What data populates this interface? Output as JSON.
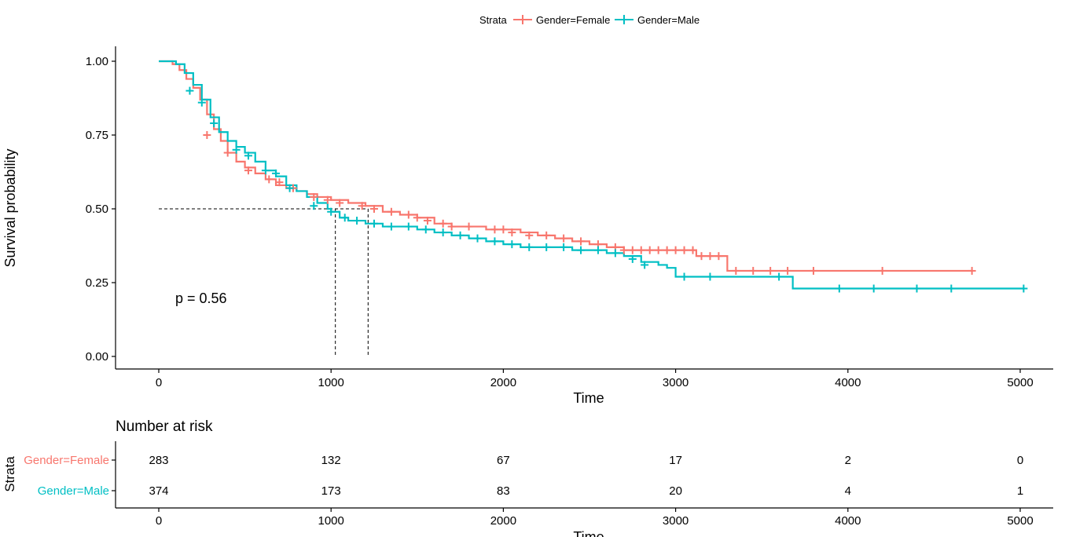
{
  "colors": {
    "female": "#F8766D",
    "male": "#00BFC4",
    "axis": "#000000"
  },
  "legend": {
    "title": "Strata",
    "items": [
      {
        "label": "Gender=Female",
        "color": "#F8766D"
      },
      {
        "label": "Gender=Male",
        "color": "#00BFC4"
      }
    ]
  },
  "annotation": {
    "pvalue": "p = 0.56"
  },
  "chart_data": [
    {
      "type": "line",
      "subtype": "kaplan-meier step",
      "xlabel": "Time",
      "ylabel": "Survival probability",
      "xlim": [
        0,
        5000
      ],
      "ylim": [
        0,
        1
      ],
      "x_ticks": [
        "0",
        "1000",
        "2000",
        "3000",
        "4000",
        "5000"
      ],
      "y_ticks": [
        "0.00",
        "0.25",
        "0.50",
        "0.75",
        "1.00"
      ],
      "x_tick_values": [
        0,
        1000,
        2000,
        3000,
        4000,
        5000
      ],
      "y_tick_values": [
        0,
        0.25,
        0.5,
        0.75,
        1
      ],
      "grid": false,
      "legend_position": "top",
      "median_lines": [
        {
          "series": "Gender=Male",
          "x": 1025,
          "y": 0.5
        },
        {
          "series": "Gender=Female",
          "x": 1215,
          "y": 0.5
        }
      ],
      "series": [
        {
          "name": "Gender=Female",
          "color": "#F8766D",
          "x": [
            0,
            40,
            80,
            120,
            160,
            200,
            240,
            280,
            320,
            360,
            400,
            450,
            500,
            560,
            620,
            680,
            740,
            800,
            860,
            920,
            1000,
            1100,
            1200,
            1300,
            1400,
            1500,
            1600,
            1700,
            1800,
            1900,
            2000,
            2100,
            2200,
            2300,
            2400,
            2500,
            2600,
            2700,
            2800,
            2900,
            3000,
            3100,
            3120,
            3300,
            4720
          ],
          "y": [
            1.0,
            1.0,
            0.99,
            0.97,
            0.94,
            0.91,
            0.87,
            0.82,
            0.77,
            0.73,
            0.69,
            0.66,
            0.64,
            0.62,
            0.6,
            0.58,
            0.57,
            0.56,
            0.55,
            0.54,
            0.53,
            0.52,
            0.51,
            0.49,
            0.48,
            0.47,
            0.45,
            0.44,
            0.44,
            0.43,
            0.43,
            0.42,
            0.41,
            0.4,
            0.39,
            0.38,
            0.37,
            0.36,
            0.36,
            0.36,
            0.36,
            0.36,
            0.34,
            0.29,
            0.29
          ],
          "censored_x": [
            280,
            400,
            520,
            640,
            700,
            780,
            900,
            980,
            1050,
            1180,
            1250,
            1350,
            1450,
            1500,
            1560,
            1650,
            1700,
            1800,
            1950,
            2000,
            2050,
            2150,
            2250,
            2350,
            2450,
            2550,
            2650,
            2700,
            2750,
            2800,
            2850,
            2900,
            2950,
            3000,
            3050,
            3100,
            3150,
            3200,
            3250,
            3350,
            3450,
            3550,
            3650,
            3800,
            4200,
            4720
          ],
          "censored_y": [
            0.75,
            0.69,
            0.63,
            0.6,
            0.59,
            0.57,
            0.54,
            0.53,
            0.52,
            0.51,
            0.5,
            0.49,
            0.48,
            0.47,
            0.46,
            0.45,
            0.44,
            0.44,
            0.43,
            0.43,
            0.42,
            0.41,
            0.41,
            0.4,
            0.39,
            0.38,
            0.37,
            0.36,
            0.36,
            0.36,
            0.36,
            0.36,
            0.36,
            0.36,
            0.36,
            0.36,
            0.34,
            0.34,
            0.34,
            0.29,
            0.29,
            0.29,
            0.29,
            0.29,
            0.29,
            0.29
          ]
        },
        {
          "name": "Gender=Male",
          "color": "#00BFC4",
          "x": [
            0,
            50,
            100,
            150,
            200,
            250,
            300,
            350,
            400,
            450,
            500,
            560,
            620,
            680,
            740,
            800,
            860,
            920,
            980,
            1000,
            1050,
            1100,
            1200,
            1300,
            1400,
            1500,
            1600,
            1700,
            1800,
            1900,
            2000,
            2100,
            2200,
            2300,
            2400,
            2500,
            2600,
            2700,
            2800,
            2900,
            2950,
            3000,
            3680,
            5020
          ],
          "y": [
            1.0,
            1.0,
            0.99,
            0.96,
            0.92,
            0.87,
            0.81,
            0.76,
            0.73,
            0.71,
            0.69,
            0.66,
            0.63,
            0.61,
            0.58,
            0.56,
            0.54,
            0.52,
            0.5,
            0.49,
            0.47,
            0.46,
            0.45,
            0.44,
            0.44,
            0.43,
            0.42,
            0.41,
            0.4,
            0.39,
            0.38,
            0.37,
            0.37,
            0.37,
            0.36,
            0.36,
            0.35,
            0.34,
            0.32,
            0.31,
            0.3,
            0.27,
            0.23,
            0.23
          ],
          "censored_x": [
            180,
            250,
            320,
            450,
            520,
            620,
            680,
            760,
            900,
            1000,
            1080,
            1150,
            1250,
            1350,
            1450,
            1550,
            1650,
            1750,
            1850,
            1950,
            2050,
            2150,
            2250,
            2350,
            2450,
            2550,
            2650,
            2750,
            2820,
            3050,
            3200,
            3600,
            3950,
            4150,
            4400,
            4600,
            5020
          ],
          "censored_y": [
            0.9,
            0.86,
            0.79,
            0.7,
            0.68,
            0.63,
            0.62,
            0.57,
            0.51,
            0.49,
            0.47,
            0.46,
            0.45,
            0.44,
            0.44,
            0.43,
            0.42,
            0.41,
            0.4,
            0.39,
            0.38,
            0.37,
            0.37,
            0.37,
            0.36,
            0.36,
            0.35,
            0.33,
            0.31,
            0.27,
            0.27,
            0.27,
            0.23,
            0.23,
            0.23,
            0.23,
            0.23
          ]
        }
      ]
    },
    {
      "type": "table",
      "title": "Number at risk",
      "ylabel": "Strata",
      "xlabel": "Time",
      "x_ticks": [
        "0",
        "1000",
        "2000",
        "3000",
        "4000",
        "5000"
      ],
      "x_tick_values": [
        0,
        1000,
        2000,
        3000,
        4000,
        5000
      ],
      "rows": [
        {
          "name": "Gender=Female",
          "color": "#F8766D",
          "values": [
            "283",
            "132",
            "67",
            "17",
            "2",
            "0"
          ]
        },
        {
          "name": "Gender=Male",
          "color": "#00BFC4",
          "values": [
            "374",
            "173",
            "83",
            "20",
            "4",
            "1"
          ]
        }
      ]
    }
  ]
}
